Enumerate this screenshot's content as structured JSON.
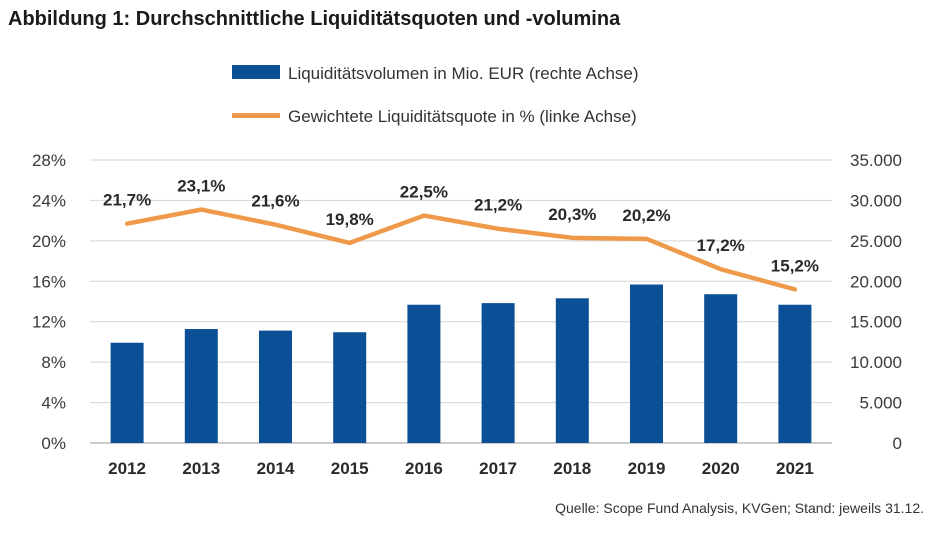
{
  "title": "Abbildung 1: Durchschnittliche Liquiditätsquoten und -volumina",
  "source": "Quelle: Scope Fund Analysis, KVGen; Stand: jeweils 31.12.",
  "colors": {
    "bar": "#0b4f96",
    "line": "#ef9a4a",
    "grid": "#d4d4d4"
  },
  "chart_data": {
    "type": "bar",
    "categories": [
      "2012",
      "2013",
      "2014",
      "2015",
      "2016",
      "2017",
      "2018",
      "2019",
      "2020",
      "2021"
    ],
    "series": [
      {
        "name": "Liquiditätsvolumen in Mio. EUR (rechte Achse)",
        "type": "bar",
        "axis": "right",
        "values": [
          12400,
          14100,
          13900,
          13700,
          17100,
          17300,
          17900,
          19600,
          18400,
          17100
        ]
      },
      {
        "name": "Gewichtete Liquiditätsquote in % (linke Achse)",
        "type": "line",
        "axis": "left",
        "values": [
          21.7,
          23.1,
          21.6,
          19.8,
          22.5,
          21.2,
          20.3,
          20.2,
          17.2,
          15.2
        ],
        "labels": [
          "21,7%",
          "23,1%",
          "21,6%",
          "19,8%",
          "22,5%",
          "21,2%",
          "20,3%",
          "20,2%",
          "17,2%",
          "15,2%"
        ]
      }
    ],
    "y_left": {
      "min": 0,
      "max": 28,
      "ticks": [
        "0%",
        "4%",
        "8%",
        "12%",
        "16%",
        "20%",
        "24%",
        "28%"
      ]
    },
    "y_right": {
      "min": 0,
      "max": 35000,
      "ticks": [
        "0",
        "5.000",
        "10.000",
        "15.000",
        "20.000",
        "25.000",
        "30.000",
        "35.000"
      ]
    },
    "legend_position": "top-center",
    "grid": true
  }
}
